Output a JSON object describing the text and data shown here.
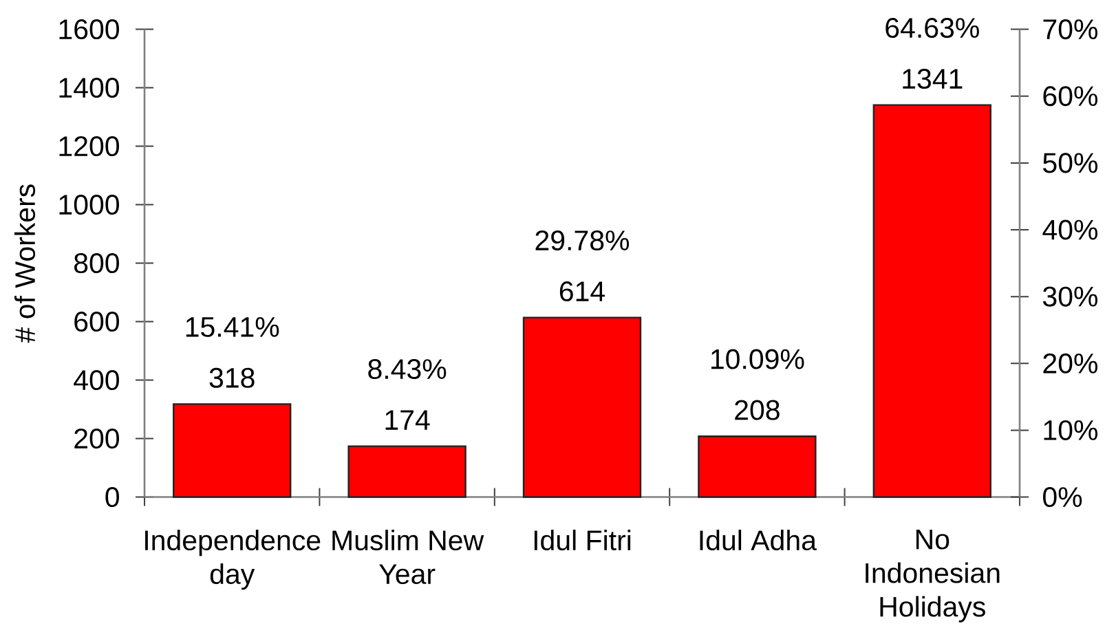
{
  "chart_data": {
    "type": "bar",
    "categories": [
      "Independence day",
      "Muslim New Year",
      "Idul Fitri",
      "Idul Adha",
      "No Indonesian Holidays"
    ],
    "values": [
      318,
      174,
      614,
      208,
      1341
    ],
    "color": "#ff0000",
    "data_labels": true,
    "ylabel": "# of Workers",
    "ylim": [
      0,
      1600
    ],
    "yticks": [
      0,
      200,
      400,
      600,
      800,
      1000,
      1200,
      1400,
      1600
    ],
    "y2lim": [
      0,
      70
    ],
    "y2ticks": [
      {
        "value": 0,
        "label": "0%"
      },
      {
        "value": 10,
        "label": "10%"
      },
      {
        "value": 20,
        "label": "20%"
      },
      {
        "value": 30,
        "label": "30%"
      },
      {
        "value": 40,
        "label": "40%"
      },
      {
        "value": 50,
        "label": "50%"
      },
      {
        "value": 60,
        "label": "60%"
      },
      {
        "value": 70,
        "label": "70%"
      }
    ],
    "annotations": [
      {
        "text": "15.41%",
        "x": "Independence day",
        "y": 318
      },
      {
        "text": "8.43%",
        "x": "Muslim New Year",
        "y": 174
      },
      {
        "text": "29.78%",
        "x": "Idul Fitri",
        "y": 614
      },
      {
        "text": "10.09%",
        "x": "Idul Adha",
        "y": 208
      },
      {
        "text": "64.63%",
        "x": "No Indonesian Holidays",
        "y": 1341
      }
    ]
  }
}
